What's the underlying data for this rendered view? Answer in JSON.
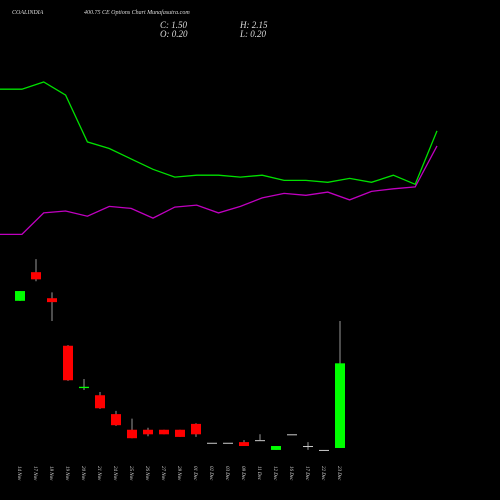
{
  "chart_data": {
    "type": "candlestick",
    "title": "COALINDIA",
    "subtitle": "400.75 CE Options  Chart Munafasutra.com",
    "ohlc_labels": [
      "C: 1.50",
      "O: 0.20",
      "H: 2.15",
      "L: 0.20"
    ],
    "categories": [
      "14 Nov",
      "17 Nov",
      "18 Nov",
      "19 Nov",
      "20 Nov",
      "21 Nov",
      "24 Nov",
      "25 Nov",
      "26 Nov",
      "27 Nov",
      "28 Nov",
      "01 Dec",
      "02 Dec",
      "03 Dec",
      "08 Dec",
      "11 Dec",
      "12 Dec",
      "16 Dec",
      "17 Dec",
      "22 Dec",
      "23 Dec"
    ],
    "open": [
      2.46,
      2.9,
      2.5,
      1.77,
      1.12,
      1.01,
      0.72,
      0.48,
      0.48,
      0.48,
      0.48,
      0.57,
      0.28,
      0.28,
      0.29,
      0.32,
      0.17,
      0.41,
      0.23,
      0.17,
      0.2
    ],
    "high": [
      2.61,
      3.1,
      2.59,
      1.78,
      1.26,
      1.06,
      0.77,
      0.65,
      0.51,
      0.48,
      0.48,
      0.58,
      0.28,
      0.28,
      0.32,
      0.41,
      0.23,
      0.41,
      0.29,
      0.17,
      2.15
    ],
    "low": [
      2.46,
      2.76,
      2.15,
      1.23,
      1.09,
      0.8,
      0.54,
      0.35,
      0.38,
      0.41,
      0.37,
      0.37,
      0.28,
      0.28,
      0.23,
      0.32,
      0.17,
      0.41,
      0.17,
      0.17,
      0.2
    ],
    "close": [
      2.61,
      2.79,
      2.44,
      1.24,
      1.14,
      0.81,
      0.55,
      0.35,
      0.41,
      0.41,
      0.37,
      0.41,
      0.28,
      0.28,
      0.23,
      0.32,
      0.23,
      0.41,
      0.23,
      0.17,
      1.5
    ],
    "up_color": "#00ff00",
    "down_color": "#ff0000",
    "flat_color": "#cccccc",
    "lines": [
      {
        "color": "#00e000",
        "values": [
          5.71,
          5.71,
          5.82,
          5.62,
          4.9,
          4.8,
          4.64,
          4.48,
          4.36,
          4.39,
          4.39,
          4.36,
          4.39,
          4.31,
          4.31,
          4.28,
          4.34,
          4.28,
          4.39,
          4.25,
          5.07
        ]
      },
      {
        "color": "#c000c0",
        "values": [
          3.48,
          3.48,
          3.81,
          3.84,
          3.76,
          3.91,
          3.88,
          3.73,
          3.9,
          3.93,
          3.81,
          3.91,
          4.04,
          4.11,
          4.08,
          4.13,
          4.01,
          4.14,
          4.18,
          4.21,
          4.84
        ]
      }
    ],
    "ylim": [
      0,
      7.08
    ]
  }
}
